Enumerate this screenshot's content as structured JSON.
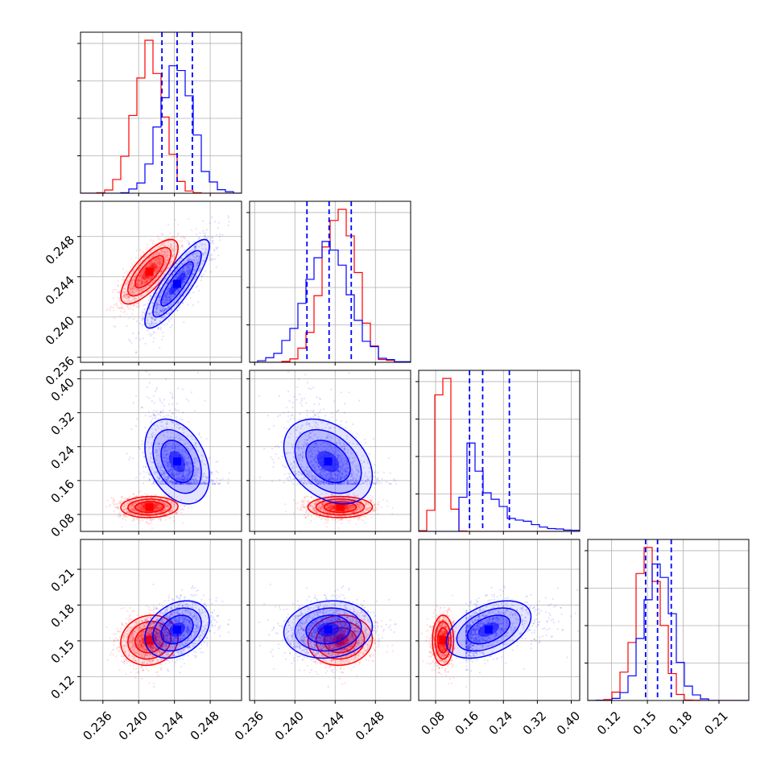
{
  "chart_data": {
    "type": "corner",
    "title": "",
    "parameters": 4,
    "series": [
      {
        "color": "#ff0000",
        "mean": [
          0.2412,
          0.2445,
          0.0975,
          0.1505
        ],
        "std": [
          0.0016,
          0.0016,
          0.0125,
          0.0105
        ],
        "corr": [
          [
            1,
            0.75,
            0.05,
            0.1
          ],
          [
            0.75,
            1,
            0.0,
            0.05
          ],
          [
            0.05,
            0.0,
            1,
            0.0
          ],
          [
            0.1,
            0.05,
            0.0,
            1
          ]
        ],
        "percentiles": null
      },
      {
        "color": "#0000ff",
        "mean": [
          0.2443,
          0.2433,
          0.205,
          0.1595
        ],
        "std": [
          0.0018,
          0.0022,
          0.05,
          0.012
        ],
        "corr": [
          [
            1,
            0.85,
            -0.35,
            0.3
          ],
          [
            0.85,
            1,
            -0.35,
            0.1
          ],
          [
            -0.35,
            -0.35,
            1,
            0.45
          ],
          [
            0.3,
            0.1,
            0.45,
            1
          ]
        ],
        "percentiles": [
          [
            0.2426,
            0.2443,
            0.246
          ],
          [
            0.2412,
            0.2434,
            0.2456
          ],
          [
            0.16,
            0.191,
            0.254
          ],
          [
            0.1485,
            0.1585,
            0.17
          ]
        ]
      }
    ],
    "ranges": [
      [
        0.2335,
        0.2515
      ],
      [
        0.2355,
        0.2515
      ],
      [
        0.04,
        0.42
      ],
      [
        0.1,
        0.235
      ]
    ],
    "ticks": [
      [
        "0.236",
        "0.240",
        "0.244",
        "0.248"
      ],
      [
        "0.236",
        "0.240",
        "0.244",
        "0.248"
      ],
      [
        "0.08",
        "0.16",
        "0.24",
        "0.32",
        "0.40"
      ],
      [
        "0.12",
        "0.15",
        "0.18",
        "0.21"
      ]
    ],
    "grid": true,
    "legend": "none"
  }
}
